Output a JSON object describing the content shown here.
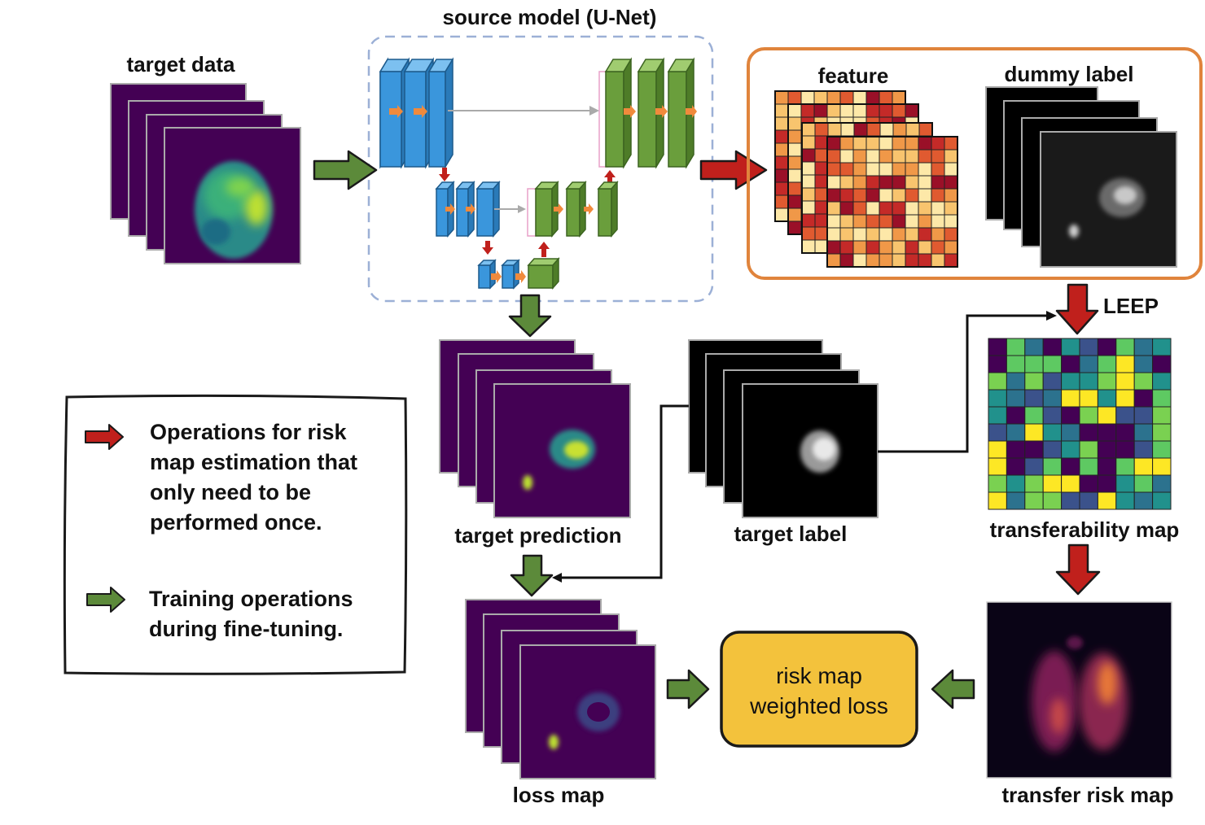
{
  "labels": {
    "source_model": "source model (U-Net)",
    "target_data": "target data",
    "feature": "feature",
    "dummy_label": "dummy label",
    "leep": "LEEP",
    "target_prediction": "target prediction",
    "target_label": "target label",
    "transferability_map": "transferability map",
    "loss_map": "loss map",
    "transfer_risk_map": "transfer risk map",
    "weighted_loss_line1": "risk map",
    "weighted_loss_line2": "weighted loss"
  },
  "legend": {
    "red_lines": [
      "Operations for risk",
      "map estimation that",
      "only need to be",
      "performed once."
    ],
    "green_lines": [
      "Training operations",
      "during fine-tuning."
    ]
  },
  "colors": {
    "red_arrow": "#c0201c",
    "green_arrow": "#5c8a3a",
    "encoder_blue": "#3a96dc",
    "decoder_green": "#6a9e3c",
    "frame_orange": "#e0843c",
    "unet_dashed": "#9cb0d6",
    "loss_box": "#f3c23c",
    "viridis_dark": "#440154"
  }
}
